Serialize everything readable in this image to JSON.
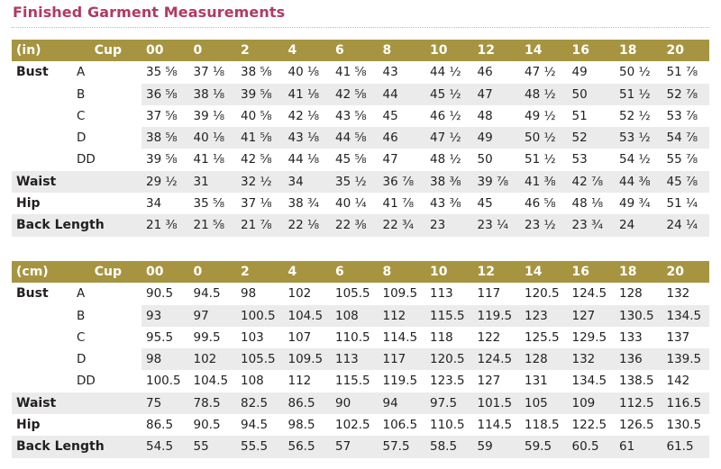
{
  "title": "Finished Garment Measurements",
  "sizes": [
    "00",
    "0",
    "2",
    "4",
    "6",
    "8",
    "10",
    "12",
    "14",
    "16",
    "18",
    "20"
  ],
  "inches": {
    "unit_label": "(in)",
    "cup_label": "Cup",
    "bust_label": "Bust",
    "bust_rows": [
      {
        "cup": "A",
        "values": [
          "35 ⅝",
          "37 ⅛",
          "38 ⅝",
          "40 ⅛",
          "41 ⅝",
          "43",
          "44 ½",
          "46",
          "47 ½",
          "49",
          "50 ½",
          "51 ⅞"
        ]
      },
      {
        "cup": "B",
        "values": [
          "36 ⅝",
          "38 ⅛",
          "39 ⅝",
          "41 ⅛",
          "42 ⅝",
          "44",
          "45 ½",
          "47",
          "48 ½",
          "50",
          "51 ½",
          "52 ⅞"
        ]
      },
      {
        "cup": "C",
        "values": [
          "37 ⅝",
          "39 ⅛",
          "40 ⅝",
          "42 ⅛",
          "43 ⅝",
          "45",
          "46 ½",
          "48",
          "49 ½",
          "51",
          "52 ½",
          "53 ⅞"
        ]
      },
      {
        "cup": "D",
        "values": [
          "38 ⅝",
          "40 ⅛",
          "41 ⅝",
          "43 ⅛",
          "44 ⅝",
          "46",
          "47 ½",
          "49",
          "50 ½",
          "52",
          "53 ½",
          "54 ⅞"
        ]
      },
      {
        "cup": "DD",
        "values": [
          "39 ⅝",
          "41 ⅛",
          "42 ⅝",
          "44 ⅛",
          "45 ⅝",
          "47",
          "48 ½",
          "50",
          "51 ½",
          "53",
          "54 ½",
          "55 ⅞"
        ]
      }
    ],
    "other_rows": [
      {
        "label": "Waist",
        "values": [
          "29 ½",
          "31",
          "32 ½",
          "34",
          "35 ½",
          "36 ⅞",
          "38 ⅜",
          "39 ⅞",
          "41 ⅜",
          "42 ⅞",
          "44 ⅜",
          "45 ⅞"
        ]
      },
      {
        "label": "Hip",
        "values": [
          "34",
          "35 ⅝",
          "37 ⅛",
          "38 ¾",
          "40 ¼",
          "41 ⅞",
          "43 ⅜",
          "45",
          "46 ⅝",
          "48 ⅛",
          "49 ¾",
          "51 ¼"
        ]
      },
      {
        "label": "Back Length",
        "values": [
          "21 ⅜",
          "21 ⅝",
          "21 ⅞",
          "22 ⅛",
          "22 ⅜",
          "22 ¾",
          "23",
          "23 ¼",
          "23 ½",
          "23 ¾",
          "24",
          "24 ¼"
        ]
      }
    ]
  },
  "cm": {
    "unit_label": "(cm)",
    "cup_label": "Cup",
    "bust_label": "Bust",
    "bust_rows": [
      {
        "cup": "A",
        "values": [
          "90.5",
          "94.5",
          "98",
          "102",
          "105.5",
          "109.5",
          "113",
          "117",
          "120.5",
          "124.5",
          "128",
          "132"
        ]
      },
      {
        "cup": "B",
        "values": [
          "93",
          "97",
          "100.5",
          "104.5",
          "108",
          "112",
          "115.5",
          "119.5",
          "123",
          "127",
          "130.5",
          "134.5"
        ]
      },
      {
        "cup": "C",
        "values": [
          "95.5",
          "99.5",
          "103",
          "107",
          "110.5",
          "114.5",
          "118",
          "122",
          "125.5",
          "129.5",
          "133",
          "137"
        ]
      },
      {
        "cup": "D",
        "values": [
          "98",
          "102",
          "105.5",
          "109.5",
          "113",
          "117",
          "120.5",
          "124.5",
          "128",
          "132",
          "136",
          "139.5"
        ]
      },
      {
        "cup": "DD",
        "values": [
          "100.5",
          "104.5",
          "108",
          "112",
          "115.5",
          "119.5",
          "123.5",
          "127",
          "131",
          "134.5",
          "138.5",
          "142"
        ]
      }
    ],
    "other_rows": [
      {
        "label": "Waist",
        "values": [
          "75",
          "78.5",
          "82.5",
          "86.5",
          "90",
          "94",
          "97.5",
          "101.5",
          "105",
          "109",
          "112.5",
          "116.5"
        ]
      },
      {
        "label": "Hip",
        "values": [
          "86.5",
          "90.5",
          "94.5",
          "98.5",
          "102.5",
          "106.5",
          "110.5",
          "114.5",
          "118.5",
          "122.5",
          "126.5",
          "130.5"
        ]
      },
      {
        "label": "Back Length",
        "values": [
          "54.5",
          "55",
          "55.5",
          "56.5",
          "57",
          "57.5",
          "58.5",
          "59",
          "59.5",
          "60.5",
          "61",
          "61.5"
        ]
      }
    ]
  }
}
